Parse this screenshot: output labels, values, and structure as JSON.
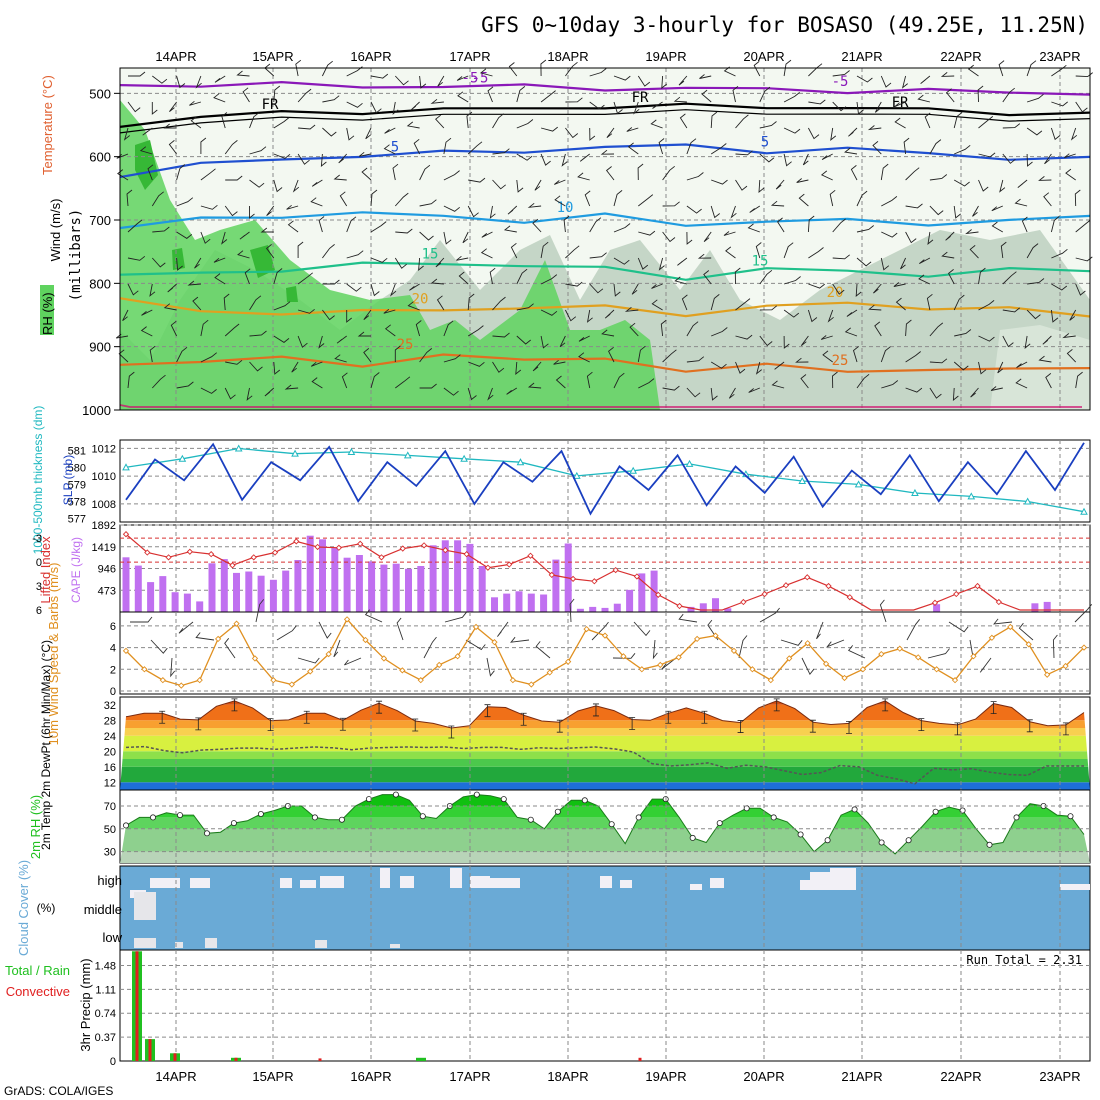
{
  "title": "GFS 0~10day 3-hourly for BOSASO (49.25E, 11.25N)",
  "credit": "GrADS: COLA/IGES",
  "date_labels": [
    "14APR",
    "15APR",
    "16APR",
    "17APR",
    "18APR",
    "19APR",
    "20APR",
    "21APR",
    "22APR",
    "23APR"
  ],
  "colors": {
    "rh_green": "#5fd35f",
    "rh_dark": "#36b836",
    "rh_light": "#c8e6c8",
    "temp_m5": "#8a18b8",
    "temp_fr": "#000000",
    "temp_5": "#1f4fd0",
    "temp_10": "#1f9be0",
    "temp_15": "#1fc08a",
    "temp_20": "#e0a020",
    "temp_25": "#e07020",
    "temp_30": "#d01070",
    "slp": "#1a3fc0",
    "thickness": "#20b8c0",
    "cape": "#c070f0",
    "lifted_index": "#d83030",
    "wind10m": "#e09020",
    "cloud": "#6aaad6",
    "precip_total": "#20c020",
    "precip_conv": "#e02020"
  },
  "chart_data": [
    {
      "type": "heatmap",
      "panel": "upper-air",
      "ylabel": "(millibars)",
      "ylabel_labels": [
        "Wind (m/s)",
        "Temperature (°C)",
        "RH (%)"
      ],
      "y_ticks": [
        500,
        600,
        700,
        800,
        900,
        1000
      ],
      "ylim": [
        460,
        1000
      ],
      "contour_labels": [
        "-5",
        "FR",
        "5",
        "10",
        "15",
        "20",
        "25"
      ],
      "isotherms": [
        {
          "name": "-5",
          "pressure": [
            487,
            486,
            487,
            488,
            489,
            490,
            491,
            493,
            494,
            495,
            497,
            498,
            499
          ]
        },
        {
          "name": "FR",
          "pressure": [
            549,
            538,
            531,
            528,
            527,
            524,
            520,
            521,
            521,
            522,
            528,
            530,
            532
          ]
        },
        {
          "name": "5",
          "pressure": [
            628,
            614,
            603,
            598,
            595,
            590,
            585,
            584,
            590,
            589,
            595,
            601,
            605
          ]
        },
        {
          "name": "10",
          "pressure": [
            712,
            700,
            692,
            690,
            695,
            700,
            694,
            708,
            700,
            703,
            705,
            700,
            697
          ]
        },
        {
          "name": "15",
          "pressure": [
            790,
            783,
            778,
            772,
            767,
            772,
            778,
            790,
            778,
            782,
            785,
            780,
            780
          ]
        },
        {
          "name": "20",
          "pressure": [
            828,
            840,
            850,
            845,
            838,
            843,
            835,
            848,
            840,
            828,
            840,
            842,
            848
          ]
        },
        {
          "name": "25",
          "pressure": [
            930,
            920,
            920,
            930,
            910,
            925,
            915,
            940,
            930,
            935,
            940,
            935,
            930
          ]
        }
      ]
    },
    {
      "type": "line",
      "panel": "slp-thickness",
      "ylabel_left": "1000-500mb thickness (dm)",
      "ylabel_right": "SLP (mb)",
      "left_ticks": [
        577,
        578,
        579,
        580,
        581
      ],
      "right_ticks": [
        1008,
        1010,
        1012
      ],
      "right_ylim": [
        1006.7,
        1012.6
      ],
      "series": [
        {
          "name": "SLP",
          "values": [
            1008.3,
            1011.2,
            1009.7,
            1012.3,
            1008.3,
            1011.0,
            1009.7,
            1012.1,
            1008.2,
            1011.0,
            1009.3,
            1011.8,
            1008.0,
            1011.0,
            1009.6,
            1011.8,
            1007.3,
            1010.7,
            1009.0,
            1011.5,
            1007.9,
            1010.7,
            1008.8,
            1011.4,
            1007.8,
            1010.4,
            1008.7,
            1011.5,
            1008.2,
            1011.0,
            1008.7,
            1011.8,
            1009.0,
            1012.4
          ]
        },
        {
          "name": "Thickness",
          "values": [
            580.0,
            580.5,
            581.1,
            580.8,
            580.9,
            580.7,
            580.5,
            580.3,
            579.5,
            579.8,
            580.2,
            579.6,
            579.2,
            579.0,
            578.5,
            578.3,
            578.0,
            577.4
          ]
        }
      ]
    },
    {
      "type": "bar",
      "panel": "cape-li",
      "ylabel_left": "Lifted Index",
      "ylabel_right": "CAPE (J/kg)",
      "li_ticks": [
        -3,
        0,
        3,
        6
      ],
      "cape_ticks": [
        473,
        946,
        1419,
        1892
      ],
      "cape_ylim": [
        0,
        1892
      ],
      "cape_values": [
        1190,
        1010,
        650,
        780,
        430,
        400,
        230,
        1060,
        1150,
        850,
        880,
        790,
        700,
        900,
        1130,
        1660,
        1580,
        1390,
        1180,
        1240,
        1100,
        1030,
        1050,
        940,
        1000,
        1450,
        1560,
        1560,
        1480,
        1000,
        320,
        400,
        450,
        400,
        380,
        1140,
        1490,
        70,
        110,
        90,
        180,
        480,
        840,
        900,
        0,
        0,
        110,
        190,
        300,
        80,
        0,
        0,
        0,
        0,
        0,
        0,
        0,
        0,
        0,
        0,
        0,
        0,
        0,
        0,
        0,
        0,
        170,
        0,
        0,
        0,
        0,
        0,
        0,
        0,
        190,
        220,
        0,
        0,
        0
      ],
      "li_values": [
        -3.5,
        -1.2,
        -0.6,
        -1.3,
        -1.0,
        0.4,
        -0.6,
        -1.2,
        -2.6,
        -1.9,
        -1.8,
        -2.3,
        -0.6,
        -1.7,
        -2.1,
        -1.5,
        -1.0,
        0.7,
        0.3,
        -0.8,
        1.6,
        2.1,
        2.4,
        1.0,
        1.8,
        4.1,
        5.5,
        6.0,
        6.0,
        5.0,
        4.0,
        2.9,
        1.9,
        3.0,
        4.4,
        6.0,
        6.0,
        6.0,
        5.1,
        4.0,
        3.0,
        5.0,
        6.0,
        6.0,
        6.0,
        6.0
      ]
    },
    {
      "type": "line",
      "panel": "wind10m",
      "ylabel": "10m Wind Speed & Barbs (m/s)",
      "y_ticks": [
        0,
        2,
        4,
        6
      ],
      "ylim": [
        0,
        7
      ],
      "series": [
        {
          "name": "10m wind speed",
          "values": [
            3.7,
            2.0,
            1.0,
            0.5,
            1.0,
            4.8,
            6.2,
            3.0,
            1.0,
            0.6,
            1.8,
            3.4,
            6.6,
            4.7,
            3.0,
            1.9,
            1.0,
            2.4,
            3.2,
            5.9,
            4.5,
            1.0,
            0.6,
            1.7,
            2.7,
            5.7,
            5.1,
            3.2,
            2.0,
            2.4,
            3.1,
            4.8,
            5.1,
            3.7,
            2.0,
            1.0,
            3.0,
            4.4,
            2.5,
            1.2,
            2.0,
            3.4,
            3.9,
            3.1,
            2.0,
            1.0,
            3.2,
            4.9,
            5.9,
            4.3,
            1.5,
            2.3,
            4.0
          ]
        }
      ]
    },
    {
      "type": "area",
      "panel": "temp-dewpoint",
      "ylabel": "2m Temp 2m DewPt (6hr Min/Max) (°C)",
      "y_ticks": [
        12,
        16,
        20,
        24,
        28,
        32
      ],
      "ylim": [
        10,
        34
      ],
      "series": [
        {
          "name": "2m Temp",
          "values": [
            28.9,
            29.8,
            29.8,
            28.3,
            28.1,
            31.6,
            33.0,
            31.2,
            27.9,
            28.1,
            29.8,
            29.8,
            28.0,
            30.6,
            32.4,
            30.5,
            27.8,
            27.2,
            26.0,
            26.6,
            31.5,
            31.3,
            29.3,
            27.8,
            27.5,
            30.4,
            31.7,
            30.5,
            28.2,
            28.0,
            29.8,
            31.2,
            29.8,
            27.9,
            27.4,
            31.2,
            33.0,
            31.0,
            27.5,
            26.9,
            27.2,
            31.3,
            33.0,
            30.0,
            27.9,
            27.2,
            26.8,
            28.3,
            32.3,
            31.3,
            27.6,
            26.6,
            26.8,
            30.0
          ]
        },
        {
          "name": "2m DewPt",
          "values": [
            21.0,
            21.2,
            20.2,
            19.6,
            20.3,
            20.5,
            20.8,
            20.8,
            20.5,
            20.8,
            21.1,
            20.9,
            20.4,
            20.8,
            21.0,
            21.1,
            21.0,
            21.1,
            20.7,
            21.0,
            21.0,
            20.5,
            20.9,
            20.7,
            20.9,
            21.1,
            20.6,
            19.8,
            16.8,
            16.2,
            16.5,
            17.0,
            15.6,
            16.4,
            16.0,
            15.0,
            14.0,
            14.5,
            16.3,
            16.0,
            13.8,
            12.9,
            11.6,
            15.6,
            15.2,
            15.5,
            14.6,
            14.0,
            13.8,
            16.2,
            16.2,
            16.2
          ]
        }
      ]
    },
    {
      "type": "area",
      "panel": "rh2m",
      "ylabel": "2m RH (%)",
      "y_ticks": [
        30,
        50,
        70
      ],
      "ylim": [
        20,
        84
      ],
      "series": [
        {
          "name": "2m RH",
          "values": [
            53,
            60,
            60,
            64,
            62,
            62,
            46,
            47,
            55,
            57,
            63,
            66,
            70,
            70,
            60,
            58,
            58,
            70,
            76,
            80,
            80,
            75,
            61,
            59,
            70,
            78,
            80,
            79,
            76,
            60,
            58,
            50,
            65,
            75,
            75,
            70,
            54,
            37,
            60,
            76,
            76,
            60,
            42,
            38,
            55,
            62,
            68,
            68,
            60,
            56,
            45,
            30,
            40,
            62,
            67,
            55,
            38,
            28,
            40,
            52,
            65,
            69,
            66,
            50,
            36,
            38,
            60,
            72,
            70,
            62,
            61,
            45
          ]
        }
      ]
    },
    {
      "type": "bar",
      "panel": "cloud-cover",
      "ylabel": "Cloud Cover (%)",
      "levels": [
        "high",
        "middle",
        "low"
      ]
    },
    {
      "type": "bar",
      "panel": "precip",
      "ylabel": "3hr Precip (mm)",
      "ylabel_legend": [
        "Total / Rain",
        "Convective"
      ],
      "y_ticks": [
        0,
        0.37,
        0.74,
        1.11,
        1.48
      ],
      "ylim": [
        0,
        1.72
      ],
      "run_total_label": "Run Total = 2.31",
      "series": [
        {
          "name": "Total / Rain",
          "values": [
            1.7,
            0.34,
            0.12,
            0.05,
            0,
            0.05,
            0
          ]
        },
        {
          "name": "Convective",
          "values": [
            1.7,
            0.34,
            0.12,
            0.05,
            0.04,
            0,
            0.05
          ]
        }
      ]
    }
  ]
}
